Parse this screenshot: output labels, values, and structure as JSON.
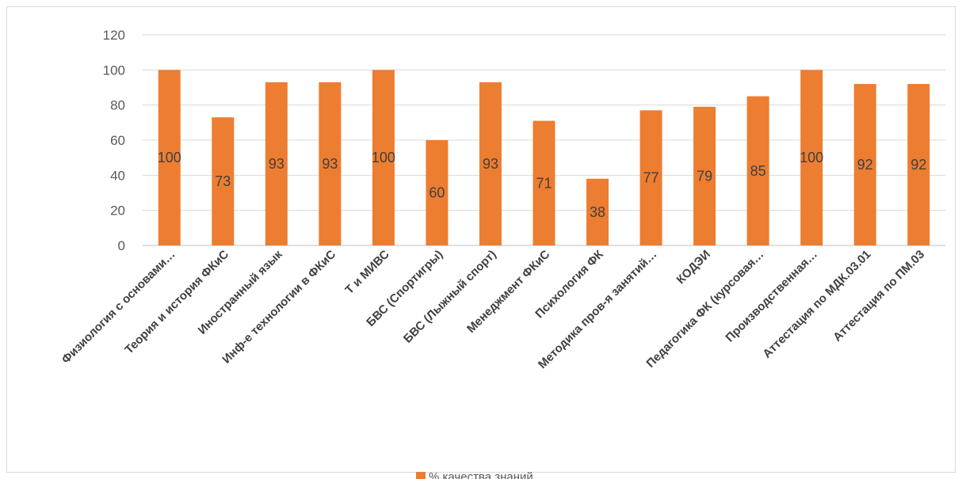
{
  "chart_data": {
    "type": "bar",
    "categories": [
      "Физиология с основами…",
      "Теория и история ФКиС",
      "Иностранный язык",
      "Инф-е технологии в ФКиС",
      "Т и МИВС",
      "БВС (Спортигры)",
      "БВС (Лыжный спорт)",
      "Менеджмент ФКиС",
      "Психология ФК",
      "Методика пров-я занятий…",
      "КОДЭИ",
      "Педагогика ФК (курсовая…",
      "Производственная…",
      "Аттестация по МДК.03.01",
      "Аттестация по ПМ.03"
    ],
    "series": [
      {
        "name": "% качества знаний",
        "values": [
          100,
          73,
          93,
          93,
          100,
          60,
          93,
          71,
          38,
          77,
          79,
          85,
          100,
          92,
          92
        ],
        "color": "#ed7d31"
      }
    ],
    "ylim": [
      0,
      120
    ],
    "yticks": [
      0,
      20,
      40,
      60,
      80,
      100,
      120
    ],
    "grid": true,
    "legend": "bottom"
  }
}
